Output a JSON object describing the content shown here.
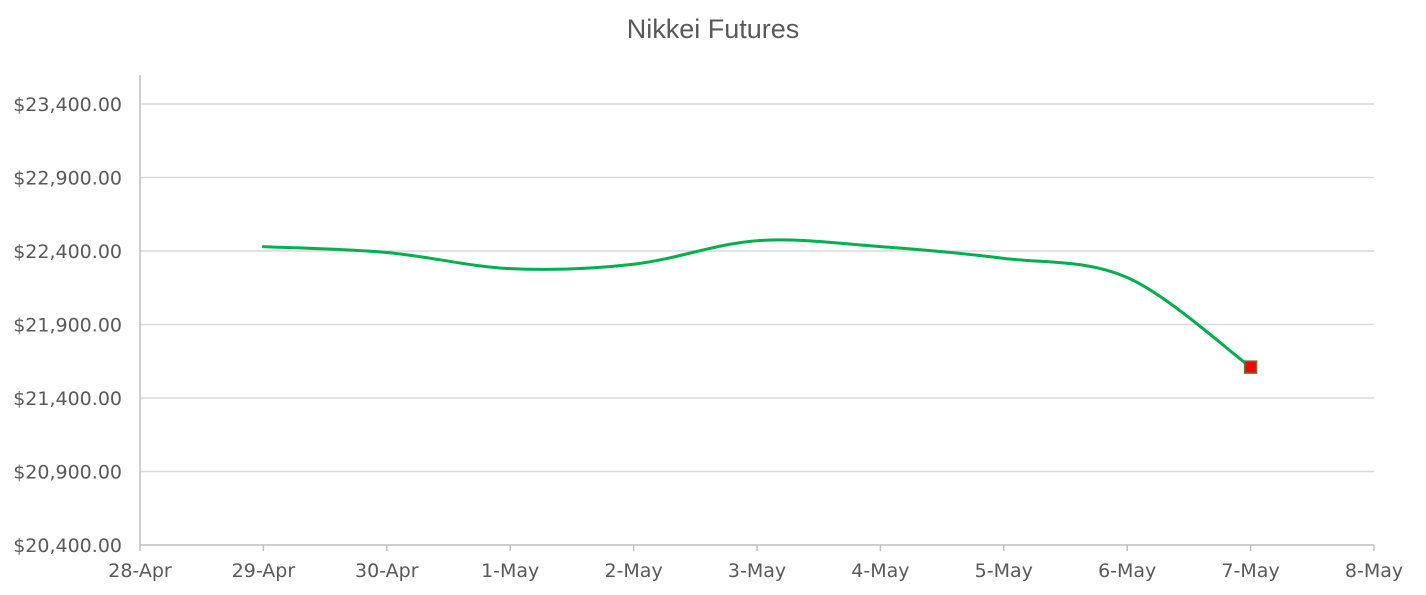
{
  "chart_data": {
    "type": "line",
    "title": "Nikkei Futures",
    "xlabel": "",
    "ylabel": "",
    "x_ticks": [
      "28-Apr",
      "29-Apr",
      "30-Apr",
      "1-May",
      "2-May",
      "3-May",
      "4-May",
      "5-May",
      "6-May",
      "7-May",
      "8-May"
    ],
    "y_ticks": [
      "$20,400.00",
      "$20,900.00",
      "$21,400.00",
      "$21,900.00",
      "$22,400.00",
      "$22,900.00",
      "$23,400.00"
    ],
    "ylim": [
      20400,
      23600
    ],
    "y_tick_values": [
      20400,
      20900,
      21400,
      21900,
      22400,
      22900,
      23400
    ],
    "grid": true,
    "legend": "none",
    "smooth": true,
    "series": [
      {
        "x": [
          "29-Apr",
          "30-Apr",
          "1-May",
          "2-May",
          "3-May",
          "4-May",
          "5-May",
          "6-May",
          "7-May"
        ],
        "values": [
          22430,
          22390,
          22280,
          22310,
          22470,
          22430,
          22350,
          22220,
          21610
        ],
        "color": "#00b050",
        "last_point_marker": {
          "shape": "square",
          "fill": "#ff0000",
          "stroke": "#5a7d3a"
        }
      }
    ],
    "colors": {
      "gridline": "#d9d9d9",
      "axis": "#bfbfbf",
      "text": "#595959"
    }
  }
}
